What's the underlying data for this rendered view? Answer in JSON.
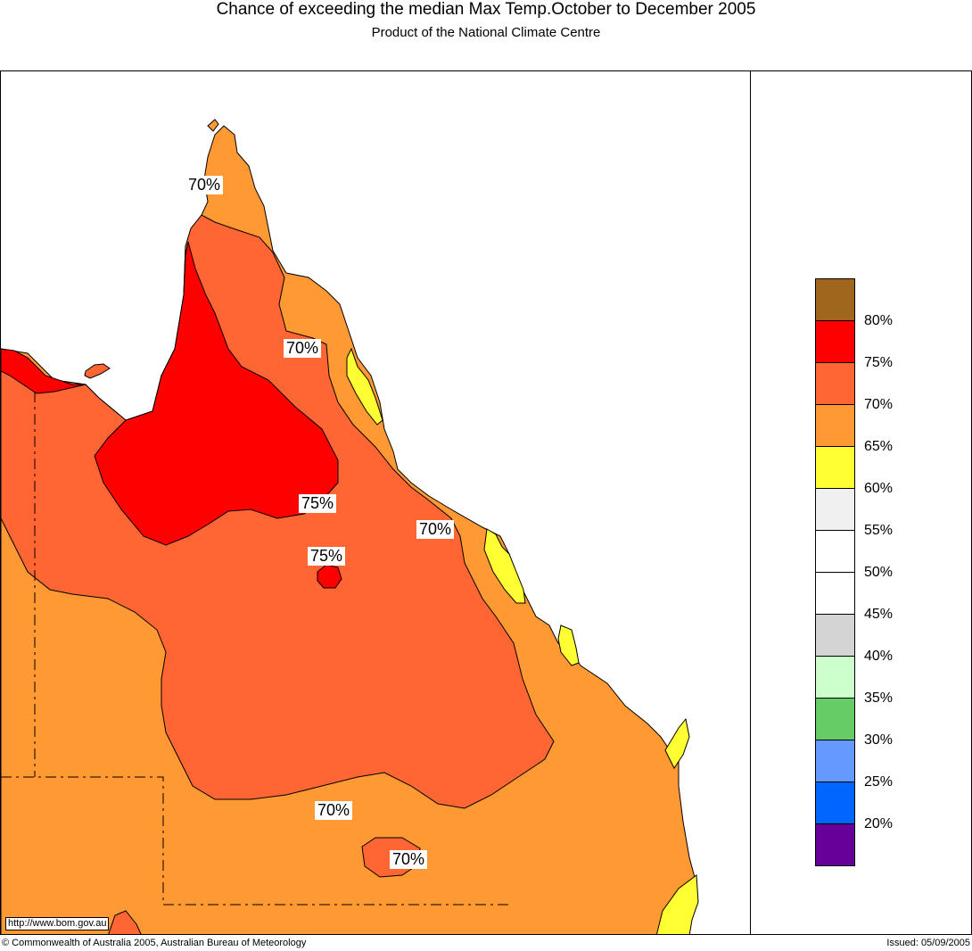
{
  "header": {
    "title": "Chance of exceeding the median Max Temp.October to December 2005",
    "subtitle": "Product of the National Climate Centre"
  },
  "map": {
    "url": "http://www.bom.gov.au",
    "contour_labels": [
      "70%",
      "70%",
      "75%",
      "75%",
      "70%",
      "70%",
      "70%"
    ]
  },
  "legend": {
    "colors": [
      "#a0661e",
      "#ff0000",
      "#ff6633",
      "#ff9933",
      "#ffff33",
      "#f0f0f0",
      "#ffffff",
      "#ffffff",
      "#d4d4d4",
      "#ccffcc",
      "#66cc66",
      "#6699ff",
      "#0066ff",
      "#660099"
    ],
    "ticks": [
      "80%",
      "75%",
      "70%",
      "65%",
      "60%",
      "55%",
      "50%",
      "45%",
      "40%",
      "35%",
      "30%",
      "25%",
      "20%"
    ]
  },
  "footer": {
    "copyright": "© Commonwealth of Australia 2005, Australian Bureau of Meteorology",
    "issued": "Issued: 05/09/2005"
  }
}
